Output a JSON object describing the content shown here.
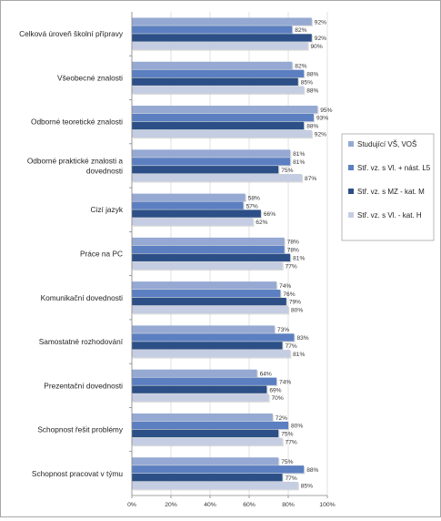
{
  "chart_data": {
    "type": "bar",
    "orientation": "horizontal",
    "categories": [
      "Celková úroveň školní přípravy",
      "Všeobecné znalosti",
      "Odborné teoretické znalosti",
      "Odborné praktické znalosti a dovednosti",
      "Cizí jazyk",
      "Práce na PC",
      "Komunikační dovednosti",
      "Samostatné rozhodování",
      "Prezentační dovednosti",
      "Schopnost řešit problémy",
      "Schopnost pracovat v týmu"
    ],
    "series": [
      {
        "name": "Studující VŠ, VOŠ",
        "color": "#95a9d3",
        "values": [
          92,
          82,
          95,
          81,
          58,
          78,
          74,
          73,
          64,
          72,
          75
        ]
      },
      {
        "name": "Stř. vz. s Vl. + nást. L5",
        "color": "#5b7fc1",
        "values": [
          82,
          88,
          93,
          81,
          57,
          78,
          76,
          83,
          74,
          80,
          88
        ]
      },
      {
        "name": "Stř. vz. s MZ - kat. M",
        "color": "#2b4f86",
        "values": [
          92,
          85,
          88,
          75,
          66,
          81,
          79,
          77,
          69,
          75,
          77
        ]
      },
      {
        "name": "Stř. vz. s Vl. - kat. H",
        "color": "#c5cde2",
        "values": [
          90,
          88,
          92,
          87,
          62,
          77,
          80,
          81,
          70,
          77,
          85
        ]
      }
    ],
    "value_suffix": "%",
    "xlim": [
      0,
      100
    ],
    "xticks": [
      "0%",
      "20%",
      "40%",
      "60%",
      "80%",
      "100%"
    ],
    "grid": true,
    "legend_position": "right",
    "title": "",
    "xlabel": "",
    "ylabel": ""
  }
}
